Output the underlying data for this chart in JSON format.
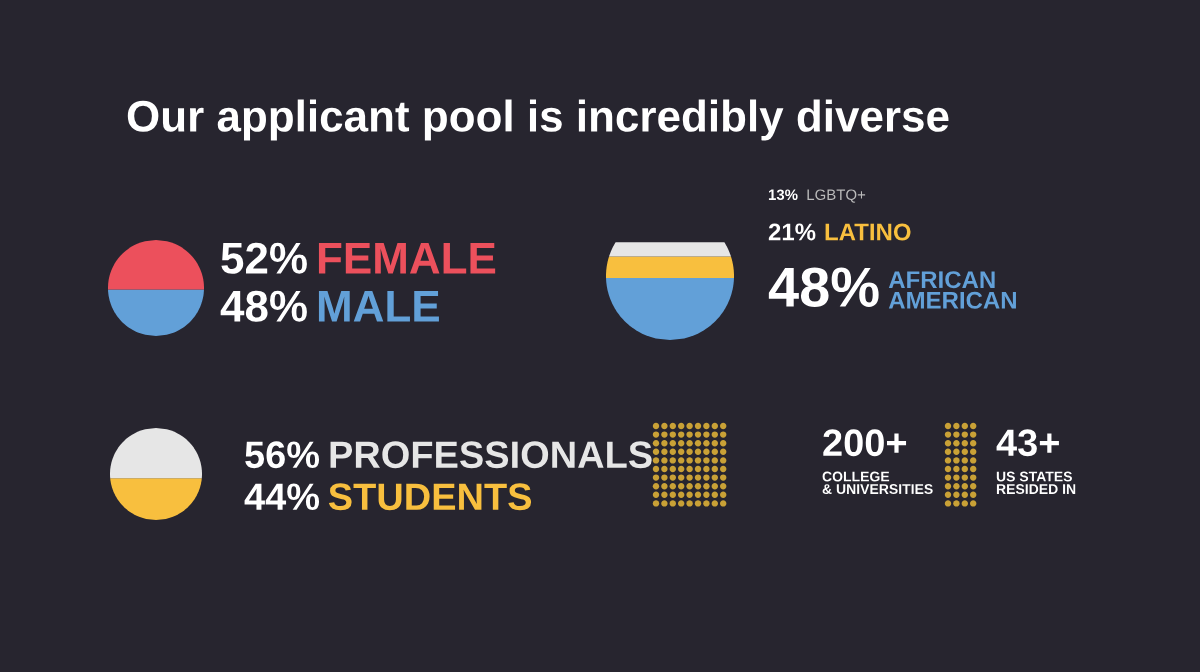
{
  "chart_data": [
    {
      "type": "other",
      "title": "Our applicant pool is incredibly diverse",
      "categories": [
        "FEMALE",
        "MALE"
      ],
      "values": [
        52,
        48
      ],
      "value_labels": [
        "52%",
        "48%"
      ],
      "colors": [
        "#ec505c",
        "#62a0d8"
      ]
    },
    {
      "type": "other",
      "categories": [
        "LGBTQ+",
        "LATINO",
        "AFRICAN\nAMERICAN"
      ],
      "values": [
        13,
        21,
        48
      ],
      "value_labels": [
        "13%",
        "21%",
        "48%"
      ],
      "colors": [
        "#e6e6e6",
        "#f8bf3e",
        "#62a0d8"
      ]
    },
    {
      "type": "other",
      "categories": [
        "PROFESSIONALS",
        "STUDENTS"
      ],
      "values": [
        56,
        44
      ],
      "value_labels": [
        "56%",
        "44%"
      ],
      "colors": [
        "#e6e6e6",
        "#f8bf3e"
      ]
    },
    {
      "type": "other",
      "annotations": [
        "200+",
        "COLLEGE\n& UNIVERSITIES",
        "43+",
        "US STATES\nRESIDED IN"
      ]
    }
  ]
}
